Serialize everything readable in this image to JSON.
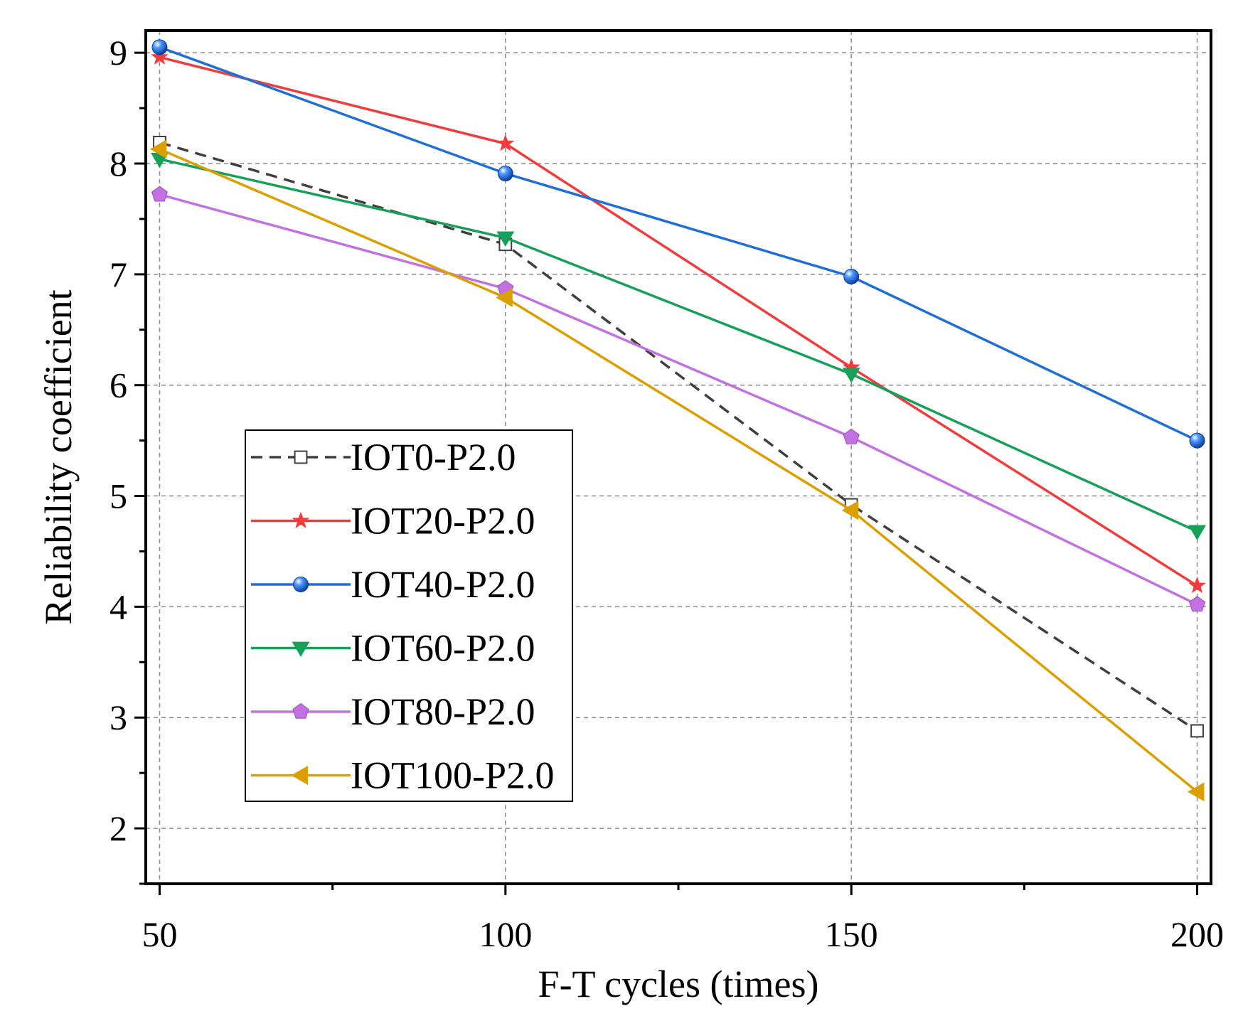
{
  "chart_data": {
    "type": "line",
    "title": "",
    "xlabel": "F-T cycles (times)",
    "ylabel": "Reliability coefficient",
    "x": [
      50,
      100,
      150,
      200
    ],
    "xlim": [
      48,
      202
    ],
    "ylim": [
      1.5,
      9.2
    ],
    "xticks": [
      50,
      100,
      150,
      200
    ],
    "xtick_labels": [
      "50",
      "100",
      "150",
      "200"
    ],
    "yticks": [
      2,
      3,
      4,
      5,
      6,
      7,
      8,
      9
    ],
    "ytick_labels": [
      "2",
      "3",
      "4",
      "5",
      "6",
      "7",
      "8",
      "9"
    ],
    "grid": true,
    "legend_position": "center-left",
    "series": [
      {
        "name": "IOT0-P2.0",
        "values": [
          8.19,
          7.27,
          4.92,
          2.88
        ],
        "color": "#3f3f3f",
        "marker": "open-square",
        "dashed": true
      },
      {
        "name": "IOT20-P2.0",
        "values": [
          8.96,
          8.18,
          6.16,
          4.19
        ],
        "color": "#f03c3c",
        "marker": "star",
        "dashed": false
      },
      {
        "name": "IOT40-P2.0",
        "values": [
          9.05,
          7.91,
          6.98,
          5.5
        ],
        "color": "#1f6fd6",
        "marker": "sphere",
        "dashed": false
      },
      {
        "name": "IOT60-P2.0",
        "values": [
          8.04,
          7.33,
          6.1,
          4.68
        ],
        "color": "#16a05a",
        "marker": "triangle-down",
        "dashed": false
      },
      {
        "name": "IOT80-P2.0",
        "values": [
          7.72,
          6.87,
          5.53,
          4.02
        ],
        "color": "#c271e0",
        "marker": "pentagon",
        "dashed": false
      },
      {
        "name": "IOT100-P2.0",
        "values": [
          8.13,
          6.79,
          4.87,
          2.33
        ],
        "color": "#dba000",
        "marker": "triangle-left",
        "dashed": false
      }
    ]
  }
}
